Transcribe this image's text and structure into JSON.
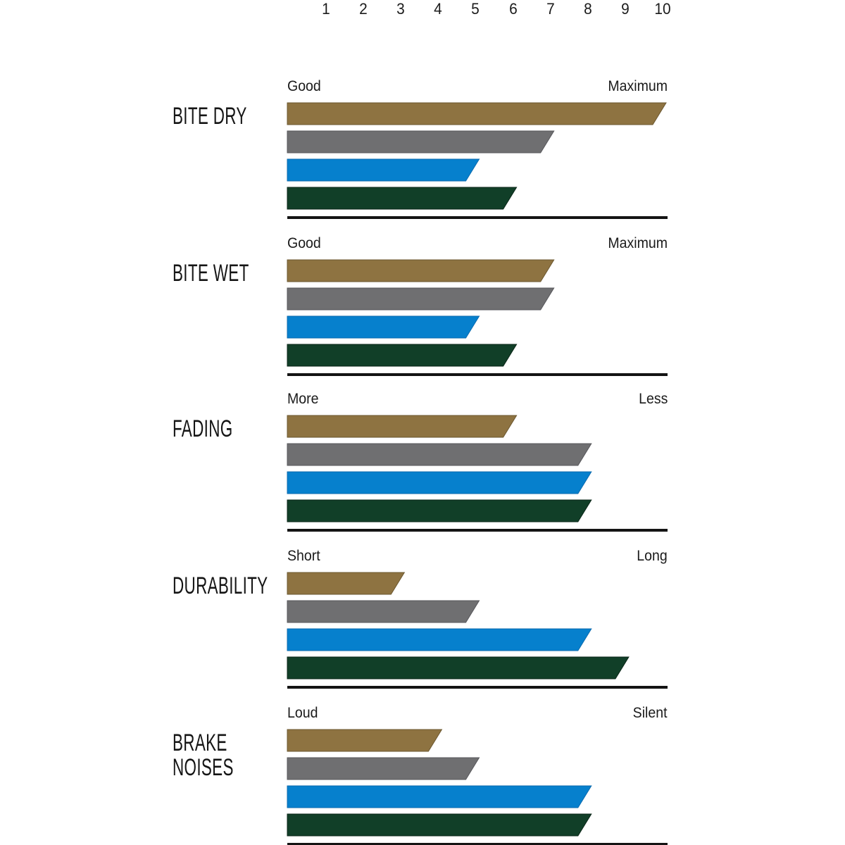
{
  "page": {
    "background": "#ffffff",
    "text_color": "#1b1b1b"
  },
  "chart_data": {
    "type": "bar",
    "orientation": "horizontal",
    "title": "",
    "axis": {
      "position": "top",
      "min": 0,
      "max": 10,
      "ticks": [
        "1",
        "2",
        "3",
        "4",
        "5",
        "6",
        "7",
        "8",
        "9",
        "10"
      ],
      "grid": false
    },
    "legend": "none",
    "baseline_color": "#141414",
    "series": [
      {
        "name": "gold",
        "color": "#8E7341",
        "stroke": "#6B572F"
      },
      {
        "name": "grey",
        "color": "#6F6F71",
        "stroke": "#57575B"
      },
      {
        "name": "blue",
        "color": "#0680CD",
        "stroke": "#0B6AAE"
      },
      {
        "name": "dark-green",
        "color": "#113F28",
        "stroke": "#0A2617"
      }
    ],
    "groups": [
      {
        "title_lines": [
          "BITE DRY"
        ],
        "scale_left": "Good",
        "scale_right": "Maximum",
        "values": [
          10,
          7,
          5,
          6
        ]
      },
      {
        "title_lines": [
          "BITE WET"
        ],
        "scale_left": "Good",
        "scale_right": "Maximum",
        "values": [
          7,
          7,
          5,
          6
        ]
      },
      {
        "title_lines": [
          "FADING"
        ],
        "scale_left": "More",
        "scale_right": "Less",
        "values": [
          6,
          8,
          8,
          8
        ]
      },
      {
        "title_lines": [
          "DURABILITY"
        ],
        "scale_left": "Short",
        "scale_right": "Long",
        "values": [
          3,
          5,
          8,
          9
        ]
      },
      {
        "title_lines": [
          "BRAKE",
          "NOISES"
        ],
        "scale_left": "Loud",
        "scale_right": "Silent",
        "values": [
          4,
          5,
          8,
          8
        ]
      }
    ]
  }
}
